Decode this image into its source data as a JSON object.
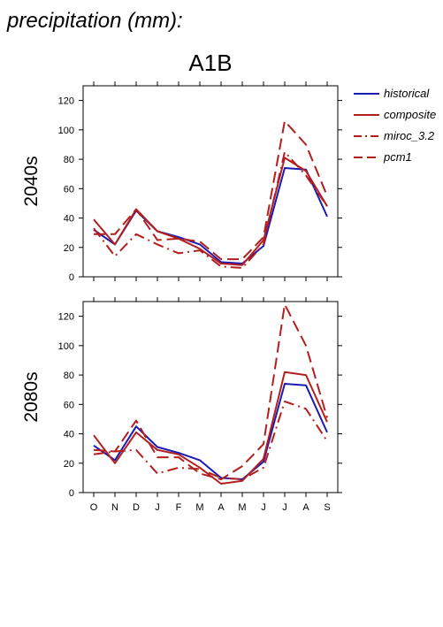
{
  "figure": {
    "title": "precipitation (mm):",
    "scenario": "A1B"
  },
  "colors": {
    "historical": "#1a1ab4",
    "composite": "#b41e1e",
    "miroc_3.2": "#b41e1e",
    "pcm1": "#b41e1e"
  },
  "legend": {
    "placement": "right-top",
    "entries": [
      {
        "key": "historical",
        "label": "historical",
        "style": "solid",
        "color": "#1a1ab4"
      },
      {
        "key": "composite",
        "label": "composite",
        "style": "solid",
        "color": "#b41e1e"
      },
      {
        "key": "miroc_3.2",
        "label": "miroc_3.2",
        "style": "dashdot",
        "color": "#b41e1e"
      },
      {
        "key": "pcm1",
        "label": "pcm1",
        "style": "dashed",
        "color": "#b41e1e"
      }
    ]
  },
  "chart_data": [
    {
      "type": "line",
      "row_label": "2040s",
      "categories": [
        "O",
        "N",
        "D",
        "J",
        "F",
        "M",
        "A",
        "M",
        "J",
        "J",
        "A",
        "S"
      ],
      "ylim": [
        0,
        130
      ],
      "yticks": [
        0,
        20,
        40,
        60,
        80,
        100,
        120
      ],
      "show_x_tick_labels": false,
      "series": [
        {
          "name": "historical",
          "style": "solid",
          "values": [
            32,
            22,
            45,
            31,
            27,
            22,
            10,
            9,
            21,
            74,
            73,
            41
          ]
        },
        {
          "name": "composite",
          "style": "solid",
          "values": [
            39,
            22,
            46,
            31,
            26,
            19,
            9,
            8,
            25,
            81,
            72,
            48
          ]
        },
        {
          "name": "miroc_3.2",
          "style": "dashdot",
          "values": [
            33,
            14,
            29,
            22,
            16,
            18,
            7,
            6,
            22,
            85,
            69,
            48
          ]
        },
        {
          "name": "pcm1",
          "style": "dashed",
          "values": [
            29,
            29,
            46,
            25,
            26,
            24,
            12,
            12,
            27,
            106,
            90,
            55
          ]
        }
      ]
    },
    {
      "type": "line",
      "row_label": "2080s",
      "categories": [
        "O",
        "N",
        "D",
        "J",
        "F",
        "M",
        "A",
        "M",
        "J",
        "J",
        "A",
        "S"
      ],
      "ylim": [
        0,
        130
      ],
      "yticks": [
        0,
        20,
        40,
        60,
        80,
        100,
        120
      ],
      "show_x_tick_labels": true,
      "series": [
        {
          "name": "historical",
          "style": "solid",
          "values": [
            32,
            22,
            45,
            31,
            27,
            22,
            10,
            9,
            21,
            74,
            73,
            41
          ]
        },
        {
          "name": "composite",
          "style": "solid",
          "values": [
            39,
            20,
            41,
            29,
            26,
            17,
            6,
            8,
            23,
            82,
            80,
            48
          ]
        },
        {
          "name": "miroc_3.2",
          "style": "dashdot",
          "values": [
            26,
            28,
            29,
            13,
            17,
            16,
            10,
            9,
            17,
            62,
            57,
            35
          ]
        },
        {
          "name": "pcm1",
          "style": "dashed",
          "values": [
            29,
            28,
            49,
            24,
            24,
            13,
            9,
            18,
            33,
            128,
            100,
            51
          ]
        }
      ]
    }
  ]
}
